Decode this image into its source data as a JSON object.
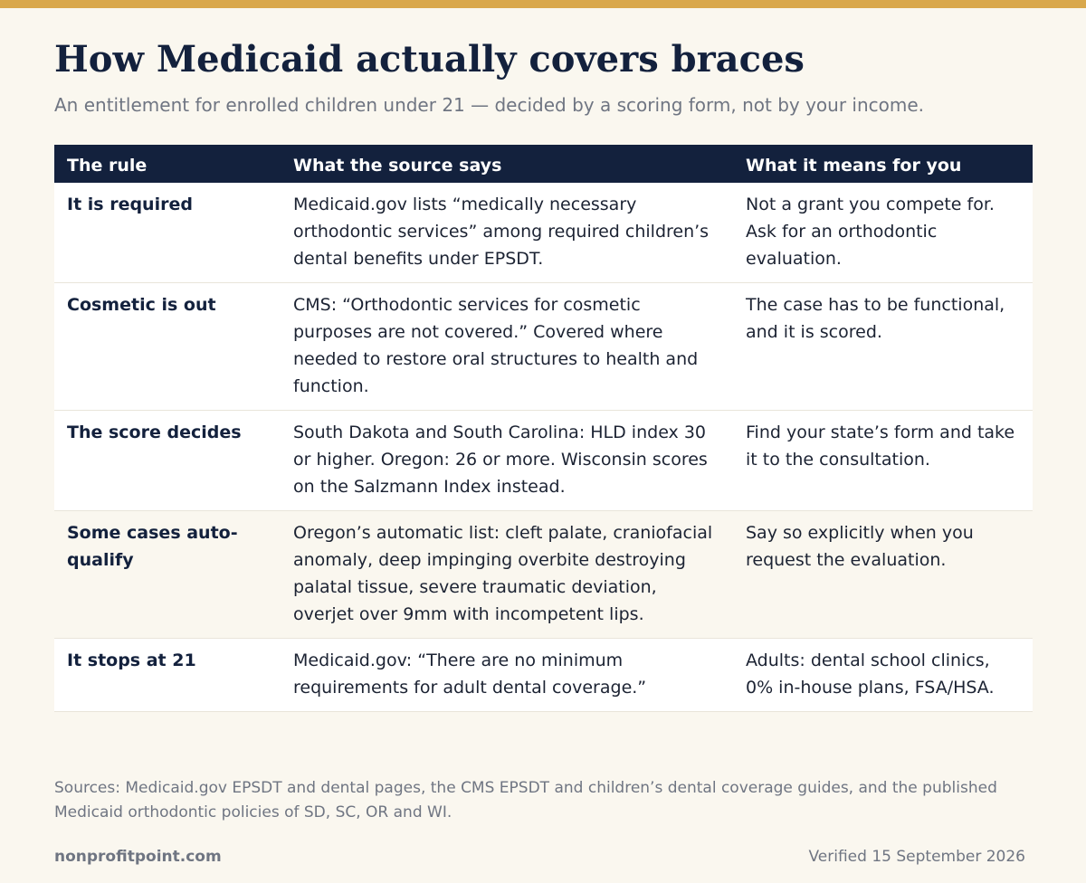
{
  "header": {
    "title": "How Medicaid actually covers braces",
    "subtitle": "An entitlement for enrolled children under 21 — decided by a scoring form, not by your income."
  },
  "table": {
    "columns": [
      "The rule",
      "What the source says",
      "What it means for you"
    ],
    "rows": [
      {
        "rule": "It is required",
        "source": "Medicaid.gov lists “medically necessary orthodontic services” among required children’s dental benefits under EPSDT.",
        "meaning": "Not a grant you compete for. Ask for an orthodontic evaluation."
      },
      {
        "rule": "Cosmetic is out",
        "source": "CMS: “Orthodontic services for cosmetic purposes are not covered.” Covered where needed to restore oral structures to health and function.",
        "meaning": "The case has to be functional, and it is scored."
      },
      {
        "rule": "The score decides",
        "source": "South Dakota and South Carolina: HLD index 30 or higher. Oregon: 26 or more. Wisconsin scores on the Salzmann Index instead.",
        "meaning": "Find your state’s form and take it to the consultation."
      },
      {
        "rule": "Some cases auto-qualify",
        "source": "Oregon’s automatic list: cleft palate, craniofacial anomaly, deep impinging overbite destroying palatal tissue, severe traumatic deviation, overjet over 9mm with incompetent lips.",
        "meaning": "Say so explicitly when you request the evaluation."
      },
      {
        "rule": "It stops at 21",
        "source": "Medicaid.gov: “There are no minimum requirements for adult dental coverage.”",
        "meaning": "Adults: dental school clinics, 0% in-house plans, FSA/HSA."
      }
    ]
  },
  "sources": "Sources: Medicaid.gov EPSDT and dental pages, the CMS EPSDT and children’s dental coverage guides, and the published Medicaid orthodontic policies of SD, SC, OR and WI.",
  "footer": {
    "site": "nonprofitpoint.com",
    "verified": "Verified 15 September 2026"
  },
  "colors": {
    "accent_bar": "#d9a84c",
    "header_navy": "#13213d",
    "background": "#faf7ef",
    "muted_text": "#6f7582"
  }
}
